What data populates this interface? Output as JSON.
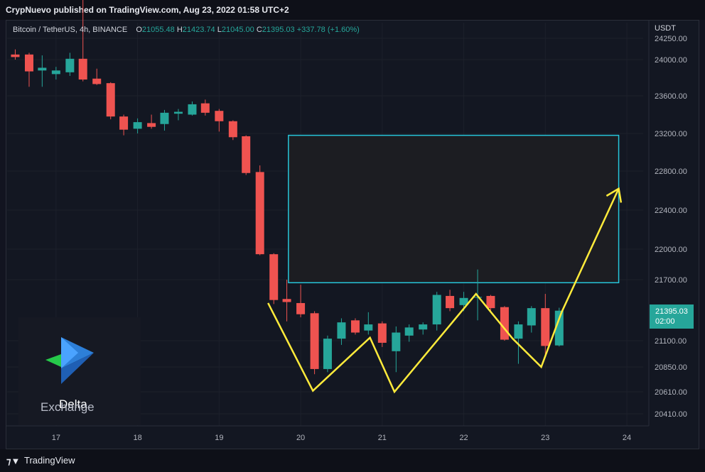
{
  "header": {
    "publisher_line": "CrypNuevo published on TradingView.com, Aug 23, 2022 01:58 UTC+2"
  },
  "legend": {
    "symbol": "Bitcoin / TetherUS, 4h, BINANCE",
    "open_label": "O",
    "open": "21055.48",
    "high_label": "H",
    "high": "21423.74",
    "low_label": "L",
    "low": "21045.00",
    "close_label": "C",
    "close": "21395.03",
    "change": "+337.78 (+1.60%)"
  },
  "axis": {
    "currency": "USDT"
  },
  "price_badge": {
    "price": "21395.03",
    "countdown": "02:00"
  },
  "branding": {
    "logo_name": "Delta.",
    "logo_sub": "Exchange",
    "footer_brand": "TradingView",
    "footer_icon": "tradingview-logo-icon"
  },
  "colors": {
    "up": "#26a69a",
    "down": "#ef5350",
    "annotation_line": "#ffeb3b",
    "target_box": "#26c6da"
  },
  "chart_data": {
    "type": "candlestick",
    "title": "Bitcoin / TetherUS, 4h, BINANCE",
    "x_ticks": [
      "17",
      "18",
      "19",
      "20",
      "21",
      "22",
      "23",
      "24"
    ],
    "y_ticks": [
      "24250.00",
      "24000.00",
      "23600.00",
      "23200.00",
      "22800.00",
      "22400.00",
      "22000.00",
      "21700.00",
      "21395.03",
      "21100.00",
      "20850.00",
      "20610.00",
      "20410.00"
    ],
    "ylim": [
      20280,
      24300
    ],
    "xlim": [
      16.4,
      24.2
    ],
    "candles": [
      {
        "t": 16.5,
        "o": 24060,
        "h": 24120,
        "l": 24000,
        "c": 24030
      },
      {
        "t": 16.67,
        "o": 24060,
        "h": 24080,
        "l": 23700,
        "c": 23870
      },
      {
        "t": 16.83,
        "o": 23880,
        "h": 24050,
        "l": 23700,
        "c": 23910
      },
      {
        "t": 17.0,
        "o": 23840,
        "h": 23920,
        "l": 23780,
        "c": 23880
      },
      {
        "t": 17.17,
        "o": 23860,
        "h": 24080,
        "l": 23820,
        "c": 24010
      },
      {
        "t": 17.33,
        "o": 24010,
        "h": 24760,
        "l": 23760,
        "c": 23780
      },
      {
        "t": 17.5,
        "o": 23790,
        "h": 23900,
        "l": 23720,
        "c": 23730
      },
      {
        "t": 17.67,
        "o": 23740,
        "h": 23750,
        "l": 23350,
        "c": 23380
      },
      {
        "t": 17.83,
        "o": 23380,
        "h": 23400,
        "l": 23180,
        "c": 23240
      },
      {
        "t": 18.0,
        "o": 23250,
        "h": 23360,
        "l": 23200,
        "c": 23320
      },
      {
        "t": 18.17,
        "o": 23310,
        "h": 23400,
        "l": 23250,
        "c": 23270
      },
      {
        "t": 18.33,
        "o": 23300,
        "h": 23450,
        "l": 23230,
        "c": 23420
      },
      {
        "t": 18.5,
        "o": 23410,
        "h": 23460,
        "l": 23340,
        "c": 23430
      },
      {
        "t": 18.67,
        "o": 23400,
        "h": 23540,
        "l": 23390,
        "c": 23510
      },
      {
        "t": 18.83,
        "o": 23520,
        "h": 23560,
        "l": 23390,
        "c": 23420
      },
      {
        "t": 19.0,
        "o": 23440,
        "h": 23460,
        "l": 23220,
        "c": 23330
      },
      {
        "t": 19.17,
        "o": 23330,
        "h": 23340,
        "l": 23130,
        "c": 23160
      },
      {
        "t": 19.33,
        "o": 23170,
        "h": 23180,
        "l": 22760,
        "c": 22780
      },
      {
        "t": 19.5,
        "o": 22790,
        "h": 22860,
        "l": 21940,
        "c": 21950
      },
      {
        "t": 19.67,
        "o": 21950,
        "h": 21960,
        "l": 21460,
        "c": 21500
      },
      {
        "t": 19.83,
        "o": 21510,
        "h": 21700,
        "l": 21290,
        "c": 21480
      },
      {
        "t": 20.0,
        "o": 21470,
        "h": 21650,
        "l": 21330,
        "c": 21360
      },
      {
        "t": 20.17,
        "o": 21370,
        "h": 21390,
        "l": 20780,
        "c": 20830
      },
      {
        "t": 20.33,
        "o": 20830,
        "h": 21150,
        "l": 20800,
        "c": 21120
      },
      {
        "t": 20.5,
        "o": 21120,
        "h": 21320,
        "l": 21060,
        "c": 21280
      },
      {
        "t": 20.67,
        "o": 21300,
        "h": 21320,
        "l": 21160,
        "c": 21180
      },
      {
        "t": 20.83,
        "o": 21200,
        "h": 21380,
        "l": 21160,
        "c": 21260
      },
      {
        "t": 21.0,
        "o": 21270,
        "h": 21290,
        "l": 21040,
        "c": 21080
      },
      {
        "t": 21.17,
        "o": 21000,
        "h": 21240,
        "l": 20800,
        "c": 21180
      },
      {
        "t": 21.33,
        "o": 21150,
        "h": 21260,
        "l": 21090,
        "c": 21230
      },
      {
        "t": 21.5,
        "o": 21210,
        "h": 21280,
        "l": 21160,
        "c": 21260
      },
      {
        "t": 21.67,
        "o": 21260,
        "h": 21580,
        "l": 21200,
        "c": 21550
      },
      {
        "t": 21.83,
        "o": 21540,
        "h": 21600,
        "l": 21390,
        "c": 21420
      },
      {
        "t": 22.0,
        "o": 21450,
        "h": 21580,
        "l": 21390,
        "c": 21520
      },
      {
        "t": 22.17,
        "o": 21530,
        "h": 21800,
        "l": 21300,
        "c": 21530
      },
      {
        "t": 22.33,
        "o": 21540,
        "h": 21550,
        "l": 21390,
        "c": 21420
      },
      {
        "t": 22.5,
        "o": 21430,
        "h": 21440,
        "l": 21100,
        "c": 21110
      },
      {
        "t": 22.67,
        "o": 21120,
        "h": 21290,
        "l": 20880,
        "c": 21260
      },
      {
        "t": 22.83,
        "o": 21250,
        "h": 21440,
        "l": 21180,
        "c": 21420
      },
      {
        "t": 23.0,
        "o": 21420,
        "h": 21560,
        "l": 20960,
        "c": 21050
      },
      {
        "t": 23.17,
        "o": 21055,
        "h": 21424,
        "l": 21045,
        "c": 21395
      }
    ],
    "annotations": {
      "target_box": {
        "x0": 19.85,
        "x1": 23.9,
        "y_low": 21670,
        "y_high": 23180
      },
      "projection_path": [
        {
          "t": 19.6,
          "p": 21470
        },
        {
          "t": 20.15,
          "p": 20620
        },
        {
          "t": 20.85,
          "p": 21130
        },
        {
          "t": 21.15,
          "p": 20610
        },
        {
          "t": 22.15,
          "p": 21560
        },
        {
          "t": 22.6,
          "p": 21120
        },
        {
          "t": 22.95,
          "p": 20850
        },
        {
          "t": 23.2,
          "p": 21380
        },
        {
          "t": 23.9,
          "p": 22620
        }
      ]
    }
  }
}
